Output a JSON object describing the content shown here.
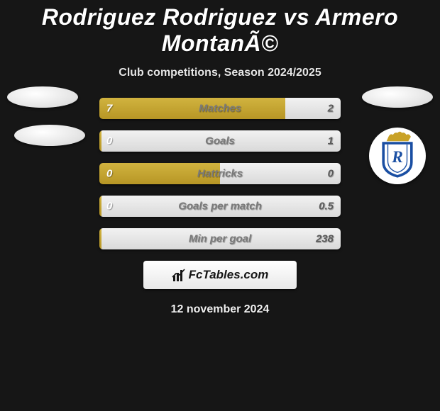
{
  "header": {
    "title": "Rodriguez Rodriguez vs Armero MontanÃ©",
    "title_color": "#ffffff",
    "title_fontsize": 32,
    "subtitle": "Club competitions, Season 2024/2025",
    "subtitle_color": "#e6e6e6",
    "subtitle_fontsize": 16
  },
  "background_color": "#161616",
  "left_color": "#c4a632",
  "right_color": "#e6e6e6",
  "bar_value_left_color": "#ffffff",
  "bar_value_right_color": "#5a5a5a",
  "bar_label_color": "#7a7a7a",
  "rows": [
    {
      "label": "Matches",
      "left": "7",
      "right": "2",
      "left_pct": 77,
      "right_pct": 23
    },
    {
      "label": "Goals",
      "left": "0",
      "right": "1",
      "left_pct": 1,
      "right_pct": 99
    },
    {
      "label": "Hattricks",
      "left": "0",
      "right": "0",
      "left_pct": 50,
      "right_pct": 50
    },
    {
      "label": "Goals per match",
      "left": "0",
      "right": "0.5",
      "left_pct": 1,
      "right_pct": 99
    },
    {
      "label": "Min per goal",
      "left": "",
      "right": "238",
      "left_pct": 1,
      "right_pct": 99
    }
  ],
  "crest": {
    "bg": "#ffffff",
    "crown_color": "#c9a227",
    "shield_stroke": "#1a4fa3",
    "letter": "R",
    "letter_color": "#1a4fa3"
  },
  "footer": {
    "brand": "FcTables.com",
    "brand_color": "#161616",
    "box_bg": "#f4f4f4",
    "date": "12 november 2024",
    "date_color": "#f0f0f0"
  }
}
